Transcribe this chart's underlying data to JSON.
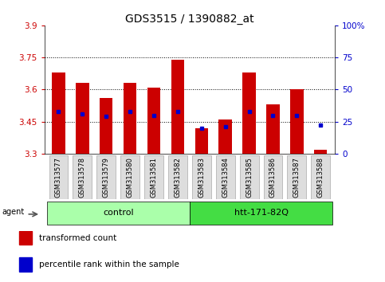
{
  "title": "GDS3515 / 1390882_at",
  "samples": [
    "GSM313577",
    "GSM313578",
    "GSM313579",
    "GSM313580",
    "GSM313581",
    "GSM313582",
    "GSM313583",
    "GSM313584",
    "GSM313585",
    "GSM313586",
    "GSM313587",
    "GSM313588"
  ],
  "bar_values": [
    3.68,
    3.63,
    3.56,
    3.63,
    3.61,
    3.74,
    3.42,
    3.46,
    3.68,
    3.53,
    3.6,
    3.32
  ],
  "percentile_values": [
    33,
    31,
    29,
    33,
    30,
    33,
    20,
    21,
    33,
    30,
    30,
    22
  ],
  "bar_bottom": 3.3,
  "ymin": 3.3,
  "ymax": 3.9,
  "yticks": [
    3.3,
    3.45,
    3.6,
    3.75,
    3.9
  ],
  "ytick_labels": [
    "3.3",
    "3.45",
    "3.6",
    "3.75",
    "3.9"
  ],
  "right_yticks": [
    0,
    25,
    50,
    75,
    100
  ],
  "right_ytick_labels": [
    "0",
    "25",
    "50",
    "75",
    "100%"
  ],
  "bar_color": "#CC0000",
  "marker_color": "#0000CC",
  "groups": [
    {
      "label": "control",
      "start": 0,
      "end": 5,
      "color": "#AAFFAA"
    },
    {
      "label": "htt-171-82Q",
      "start": 6,
      "end": 11,
      "color": "#44DD44"
    }
  ],
  "agent_label": "agent",
  "legend_items": [
    {
      "label": "transformed count",
      "color": "#CC0000"
    },
    {
      "label": "percentile rank within the sample",
      "color": "#0000CC"
    }
  ],
  "bar_width": 0.55,
  "fig_width": 4.83,
  "fig_height": 3.54,
  "dpi": 100,
  "grid_color": "black",
  "bg_color": "#DDDDDD",
  "plot_bg": "white"
}
